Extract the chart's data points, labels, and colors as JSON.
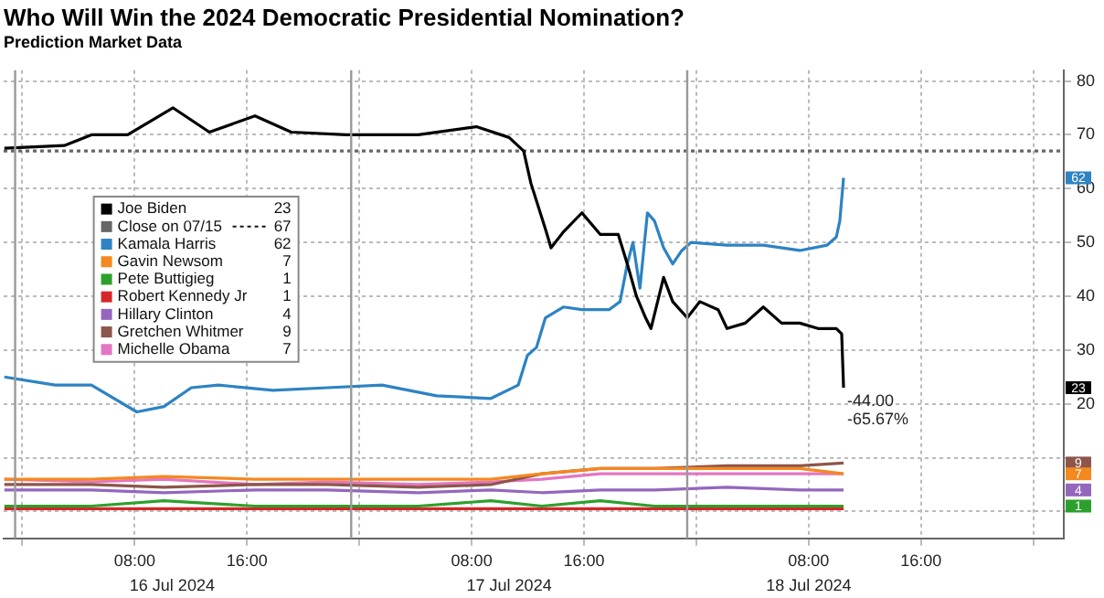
{
  "chart_data": {
    "type": "line",
    "title": "Who Will Win the 2024 Democratic Presidential Nomination?",
    "subtitle": "Prediction Market Data",
    "xlim": [
      "2024-07-15T22:40",
      "2024-07-19T02:10"
    ],
    "xticks": [
      {
        "value": "2024-07-16T00:00",
        "label": null
      },
      {
        "value": "2024-07-16T08:00",
        "label": "08:00"
      },
      {
        "value": "2024-07-16T16:00",
        "label": "16:00"
      },
      {
        "value": "2024-07-17T00:00",
        "label": null
      },
      {
        "value": "2024-07-17T08:00",
        "label": "08:00"
      },
      {
        "value": "2024-07-17T16:00",
        "label": "16:00"
      },
      {
        "value": "2024-07-18T00:00",
        "label": null
      },
      {
        "value": "2024-07-18T08:00",
        "label": "08:00"
      },
      {
        "value": "2024-07-18T16:00",
        "label": "16:00"
      },
      {
        "value": "2024-07-19T00:00",
        "label": null
      }
    ],
    "x2lim": [
      "2024-07-15T22:40",
      "2024-07-19T02:10"
    ],
    "x2ticks": [
      {
        "value": "2024-07-16T10:40",
        "label": "16 Jul 2024"
      },
      {
        "value": "2024-07-17T10:40",
        "label": "17 Jul 2024"
      },
      {
        "value": "2024-07-18T08:00",
        "label": "18 Jul 2024"
      }
    ],
    "ylim": [
      -5,
      82
    ],
    "yticks": [
      {
        "value": 0,
        "label": null
      },
      {
        "value": 10,
        "label": null
      },
      20,
      30,
      40,
      50,
      60,
      70,
      80
    ],
    "y2lim": [
      -5,
      82
    ],
    "y2ticks": [
      62,
      23,
      9,
      7,
      4,
      1
    ],
    "grid": true,
    "legend": "left",
    "series": [
      {
        "name": "Joe Biden",
        "color": "#000000",
        "x": [
          "2024-07-15T22:43",
          "2024-07-16T02:59",
          "2024-07-16T04:55",
          "2024-07-16T07:30",
          "2024-07-16T10:44",
          "2024-07-16T13:19",
          "2024-07-16T16:34",
          "2024-07-16T19:09",
          "2024-07-16T23:02",
          "2024-07-17T04:12",
          "2024-07-17T08:20",
          "2024-07-17T10:40",
          "2024-07-17T11:42",
          "2024-07-17T12:13",
          "2024-07-17T13:15",
          "2024-07-17T13:39",
          "2024-07-17T14:33",
          "2024-07-17T15:51",
          "2024-07-17T17:09",
          "2024-07-17T18:26",
          "2024-07-17T19:05",
          "2024-07-17T19:44",
          "2024-07-17T20:23",
          "2024-07-17T20:46",
          "2024-07-17T21:40",
          "2024-07-17T22:19",
          "2024-07-17T23:21",
          "2024-07-18T00:15",
          "2024-07-18T01:33",
          "2024-07-18T02:11",
          "2024-07-18T03:29",
          "2024-07-18T04:46",
          "2024-07-18T06:04",
          "2024-07-18T07:22",
          "2024-07-18T08:40",
          "2024-07-18T09:58",
          "2024-07-18T10:21",
          "2024-07-18T10:29"
        ],
        "values": [
          67.5,
          68,
          70,
          70,
          75,
          70.5,
          73.5,
          70.5,
          70,
          70,
          71.5,
          69.5,
          67,
          61,
          52.5,
          49,
          52,
          55.5,
          51.5,
          51.5,
          46,
          40,
          36,
          34,
          43.5,
          39,
          36,
          39,
          37.5,
          34,
          35,
          38,
          35,
          35,
          34,
          34,
          33,
          23
        ]
      },
      {
        "name": "Close on 07/15",
        "color": "#666666",
        "line_style": "dotted",
        "x": [
          "2024-07-15T22:40",
          "2024-07-19T02:10"
        ],
        "values": [
          67,
          67
        ]
      },
      {
        "name": "Kamala Harris",
        "color": "#2d83c3",
        "x": [
          "2024-07-15T22:43",
          "2024-07-16T02:20",
          "2024-07-16T04:55",
          "2024-07-16T08:09",
          "2024-07-16T10:05",
          "2024-07-16T12:02",
          "2024-07-16T13:58",
          "2024-07-16T17:51",
          "2024-07-16T21:44",
          "2024-07-17T01:37",
          "2024-07-17T05:30",
          "2024-07-17T09:22",
          "2024-07-17T11:19",
          "2024-07-17T11:58",
          "2024-07-17T12:37",
          "2024-07-17T13:15",
          "2024-07-17T14:33",
          "2024-07-17T15:51",
          "2024-07-17T17:47",
          "2024-07-17T18:34",
          "2024-07-17T19:05",
          "2024-07-17T19:29",
          "2024-07-17T19:59",
          "2024-07-17T20:31",
          "2024-07-17T21:01",
          "2024-07-17T21:40",
          "2024-07-17T22:19",
          "2024-07-17T22:58",
          "2024-07-17T23:37",
          "2024-07-18T02:11",
          "2024-07-18T04:46",
          "2024-07-18T07:22",
          "2024-07-18T09:19",
          "2024-07-18T09:58",
          "2024-07-18T10:13",
          "2024-07-18T10:29"
        ],
        "values": [
          25,
          23.5,
          23.5,
          18.5,
          19.5,
          23,
          23.5,
          22.5,
          23,
          23.5,
          21.5,
          21,
          23.5,
          29,
          30.5,
          36,
          38,
          37.5,
          37.5,
          39,
          46,
          50,
          41.5,
          55.5,
          54,
          49,
          46,
          48.5,
          50,
          49.5,
          49.5,
          48.5,
          49.5,
          51,
          54,
          62
        ]
      },
      {
        "name": "Gavin Newsom",
        "color": "#f5881f",
        "x": [
          "2024-07-15T22:43",
          "2024-07-16T04:55",
          "2024-07-16T10:05",
          "2024-07-16T16:34",
          "2024-07-16T21:44",
          "2024-07-17T04:12",
          "2024-07-17T09:22",
          "2024-07-17T13:00",
          "2024-07-17T17:09",
          "2024-07-17T21:01",
          "2024-07-18T02:11",
          "2024-07-18T07:22",
          "2024-07-18T10:29"
        ],
        "values": [
          6,
          6,
          6.5,
          6,
          6,
          6,
          6,
          7,
          8,
          8,
          8,
          8,
          7
        ]
      },
      {
        "name": "Pete Buttigieg",
        "color": "#2ca02c",
        "x": [
          "2024-07-15T22:43",
          "2024-07-16T04:55",
          "2024-07-16T10:05",
          "2024-07-16T16:34",
          "2024-07-16T21:44",
          "2024-07-17T04:12",
          "2024-07-17T09:22",
          "2024-07-17T13:00",
          "2024-07-17T17:09",
          "2024-07-17T21:01",
          "2024-07-18T02:11",
          "2024-07-18T07:22",
          "2024-07-18T10:29"
        ],
        "values": [
          1,
          1,
          2,
          1,
          1,
          1,
          2,
          1,
          2,
          1,
          1,
          1,
          1
        ]
      },
      {
        "name": "Robert Kennedy Jr",
        "color": "#d62728",
        "x": [
          "2024-07-15T22:43",
          "2024-07-18T10:29"
        ],
        "values": [
          0.5,
          0.5
        ]
      },
      {
        "name": "Hillary Clinton",
        "color": "#9467bd",
        "x": [
          "2024-07-15T22:43",
          "2024-07-16T04:55",
          "2024-07-16T10:05",
          "2024-07-16T16:34",
          "2024-07-16T21:44",
          "2024-07-17T04:12",
          "2024-07-17T09:22",
          "2024-07-17T13:00",
          "2024-07-17T17:09",
          "2024-07-17T21:01",
          "2024-07-18T02:11",
          "2024-07-18T07:22",
          "2024-07-18T10:29"
        ],
        "values": [
          4,
          4,
          3.5,
          4,
          4,
          3.5,
          4,
          3.5,
          4,
          4,
          4.5,
          4,
          4
        ]
      },
      {
        "name": "Gretchen Whitmer",
        "color": "#8c564b",
        "x": [
          "2024-07-15T22:43",
          "2024-07-16T04:55",
          "2024-07-16T10:05",
          "2024-07-16T16:34",
          "2024-07-16T21:44",
          "2024-07-17T04:12",
          "2024-07-17T09:22",
          "2024-07-17T13:00",
          "2024-07-17T17:09",
          "2024-07-17T21:01",
          "2024-07-18T02:11",
          "2024-07-18T07:22",
          "2024-07-18T10:29"
        ],
        "values": [
          5,
          5,
          4.5,
          5,
          5,
          4.5,
          5,
          7,
          8,
          8,
          8.5,
          8.5,
          9
        ]
      },
      {
        "name": "Michelle Obama",
        "color": "#e377c2",
        "x": [
          "2024-07-15T22:43",
          "2024-07-16T04:55",
          "2024-07-16T10:05",
          "2024-07-16T16:34",
          "2024-07-16T21:44",
          "2024-07-17T04:12",
          "2024-07-17T09:22",
          "2024-07-17T13:00",
          "2024-07-17T17:09",
          "2024-07-17T21:01",
          "2024-07-18T02:11",
          "2024-07-18T07:22",
          "2024-07-18T10:29"
        ],
        "values": [
          6,
          5.5,
          6,
          5,
          5.5,
          5,
          5.5,
          6,
          7,
          7,
          7,
          7,
          7
        ]
      }
    ],
    "ref_lines": [
      {
        "axis": "x",
        "value": "2024-07-15T23:29",
        "color": "#999999"
      },
      {
        "axis": "x",
        "value": "2024-07-16T23:25",
        "color": "#999999"
      },
      {
        "axis": "x",
        "value": "2024-07-17T23:21",
        "color": "#999999"
      }
    ],
    "annotations": [
      {
        "text": "-44.00",
        "x": "2024-07-18T10:29",
        "y": 23
      },
      {
        "text": "-65.67%",
        "x": "2024-07-18T10:29",
        "y": 23
      },
      "23",
      "67",
      "62",
      "7",
      "1",
      "1",
      "4",
      "9",
      "7"
    ]
  }
}
